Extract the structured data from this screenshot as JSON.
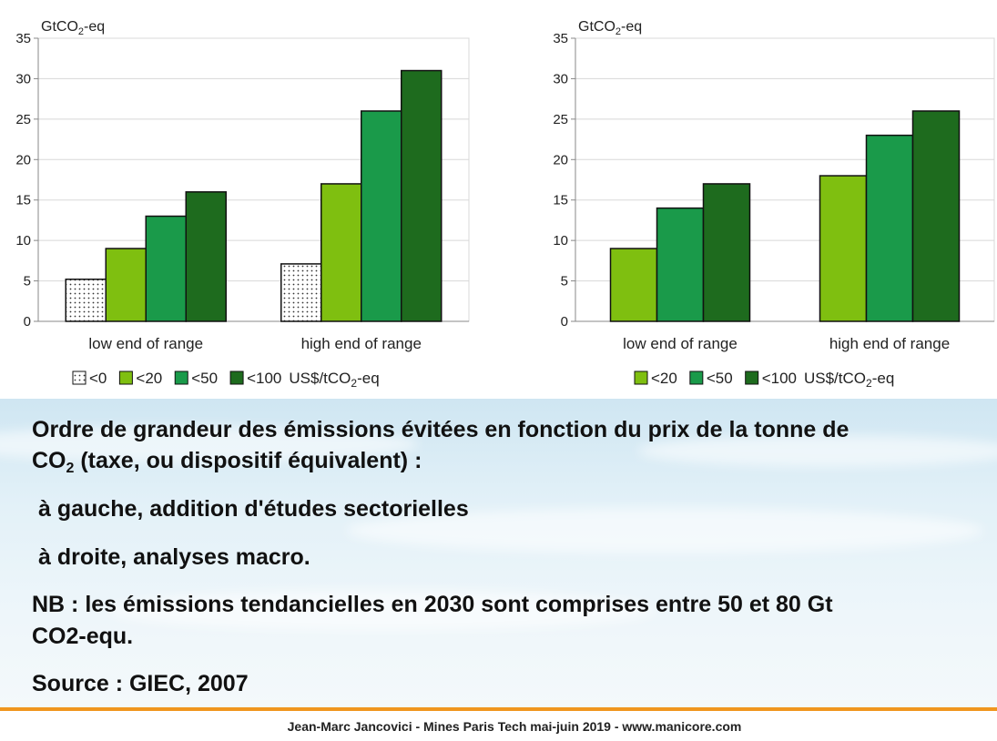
{
  "colors": {
    "lt0_fill": "#ffffff",
    "lt20": "#7fbf10",
    "lt50": "#1a9a4a",
    "lt100": "#1e6b1e",
    "axis": "#888888",
    "grid": "#d8d8d8",
    "footer_rule": "#f0961e"
  },
  "chart_data": [
    {
      "type": "bar",
      "ylabel_main": "GtCO",
      "ylabel_sub": "2",
      "ylabel_tail": "-eq",
      "ylim": [
        0,
        35
      ],
      "yticks": [
        "0",
        "5",
        "10",
        "15",
        "20",
        "25",
        "30",
        "35"
      ],
      "grid": true,
      "categories": [
        "low end of range",
        "high end of range"
      ],
      "series": [
        {
          "name": "<0",
          "key": "lt0",
          "values": [
            5.2,
            7.1
          ]
        },
        {
          "name": "<20",
          "key": "lt20",
          "values": [
            9,
            17
          ]
        },
        {
          "name": "<50",
          "key": "lt50",
          "values": [
            13,
            26
          ]
        },
        {
          "name": "<100",
          "key": "lt100",
          "values": [
            16,
            31
          ]
        }
      ],
      "legend_suffix_main": "US$/tCO",
      "legend_suffix_sub": "2",
      "legend_suffix_tail": "-eq",
      "legend_position": "bottom"
    },
    {
      "type": "bar",
      "ylabel_main": "GtCO",
      "ylabel_sub": "2",
      "ylabel_tail": "-eq",
      "ylim": [
        0,
        35
      ],
      "yticks": [
        "0",
        "5",
        "10",
        "15",
        "20",
        "25",
        "30",
        "35"
      ],
      "grid": true,
      "categories": [
        "low end of range",
        "high end of range"
      ],
      "series": [
        {
          "name": "<20",
          "key": "lt20",
          "values": [
            9,
            18
          ]
        },
        {
          "name": "<50",
          "key": "lt50",
          "values": [
            14,
            23
          ]
        },
        {
          "name": "<100",
          "key": "lt100",
          "values": [
            17,
            26
          ]
        }
      ],
      "legend_suffix_main": "US$/tCO",
      "legend_suffix_sub": "2",
      "legend_suffix_tail": "-eq",
      "legend_position": "bottom"
    }
  ],
  "text": {
    "para1_a": "Ordre de grandeur des émissions évitées en fonction du prix de la tonne de",
    "para1_b_main": "CO",
    "para1_b_sub": "2",
    "para1_b_tail": " (taxe, ou dispositif équivalent) :",
    "line_gauche": "à gauche, addition d'études sectorielles",
    "line_droite": "à droite, analyses macro.",
    "nb_a": "NB : les émissions tendancielles en 2030 sont comprises entre 50 et 80 Gt",
    "nb_b": "CO2-equ.",
    "source": "Source : GIEC, 2007"
  },
  "footer": "Jean-Marc Jancovici - Mines Paris Tech mai-juin 2019 - www.manicore.com"
}
